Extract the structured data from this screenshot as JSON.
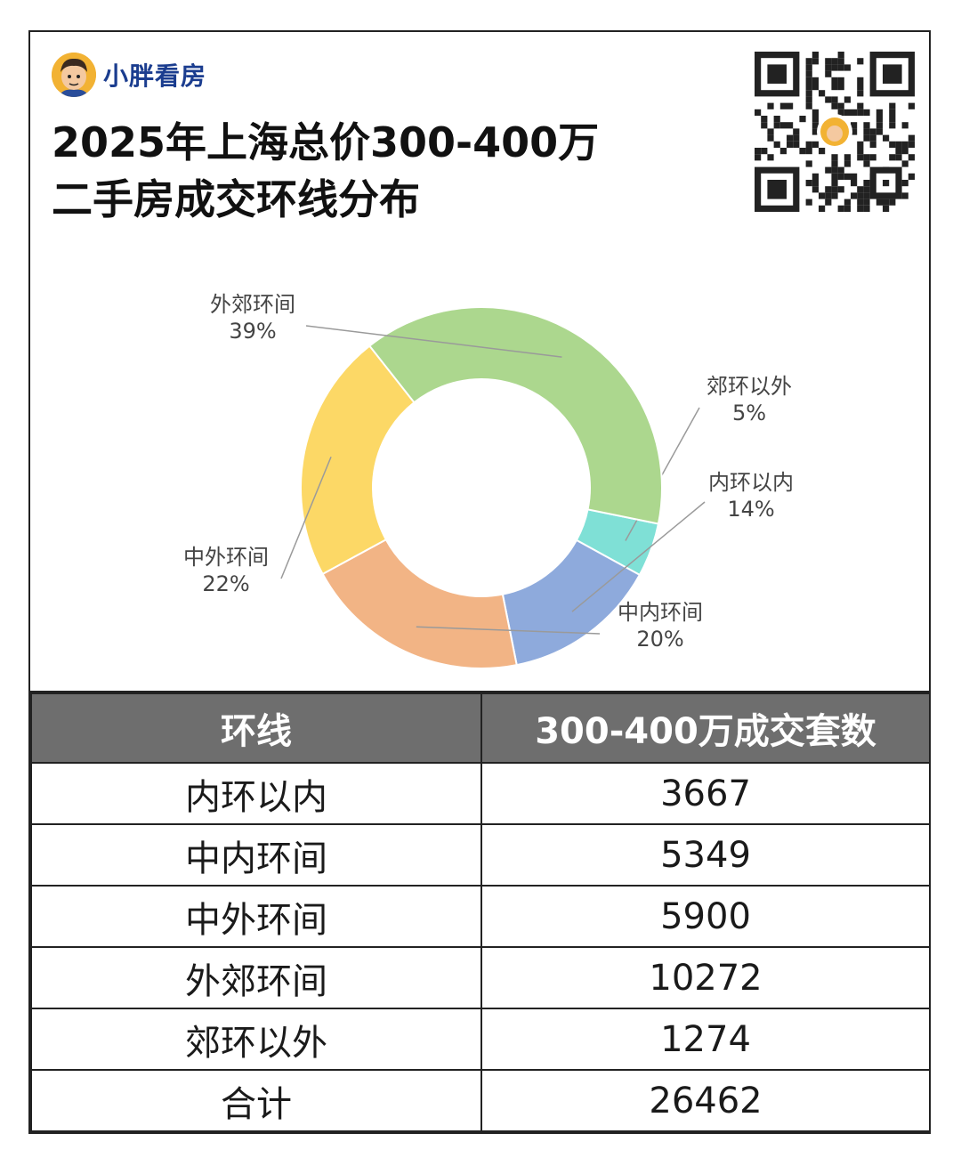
{
  "brand": {
    "name": "小胖看房",
    "avatar_icon": "cartoon-avatar-icon",
    "qr_icon": "qr-code-icon"
  },
  "title": {
    "line1": "2025年上海总价300-400万",
    "line2": "二手房成交环线分布"
  },
  "chart_data": {
    "type": "pie",
    "variant": "donut",
    "title": "2025年上海总价300-400万二手房成交环线分布",
    "start_angle_deg": 101.5,
    "slices": [
      {
        "name": "郊环以外",
        "value": 1274,
        "percent": "5%",
        "color": "#7fe0d6"
      },
      {
        "name": "内环以内",
        "value": 3667,
        "percent": "14%",
        "color": "#8eaadc"
      },
      {
        "name": "中内环间",
        "value": 5349,
        "percent": "20%",
        "color": "#f2b485"
      },
      {
        "name": "中外环间",
        "value": 5900,
        "percent": "22%",
        "color": "#fcd866"
      },
      {
        "name": "外郊环间",
        "value": 10272,
        "percent": "39%",
        "color": "#acd78e"
      }
    ]
  },
  "table": {
    "headers": [
      "环线",
      "300-400万成交套数"
    ],
    "rows": [
      [
        "内环以内",
        "3667"
      ],
      [
        "中内环间",
        "5349"
      ],
      [
        "中外环间",
        "5900"
      ],
      [
        "外郊环间",
        "10272"
      ],
      [
        "郊环以外",
        "1274"
      ],
      [
        "合计",
        "26462"
      ]
    ]
  }
}
